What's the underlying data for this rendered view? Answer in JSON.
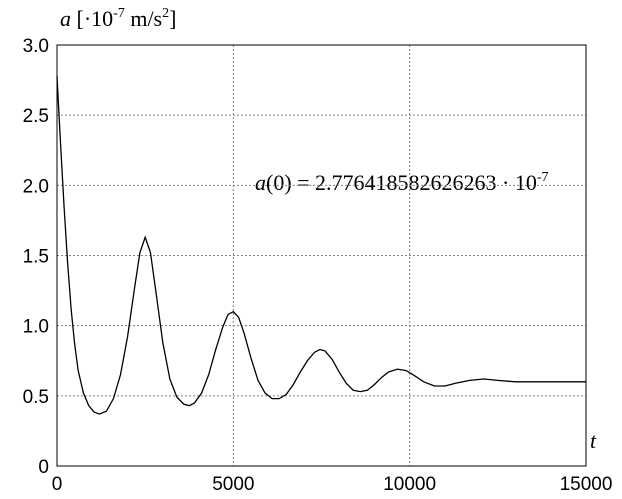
{
  "chart_data": {
    "type": "line",
    "y_label": [
      "a",
      " [·10",
      "-7",
      " m/s",
      "2",
      "]"
    ],
    "x_label": "t",
    "annotation": [
      "a",
      "(0) = 2.776418582626263 · 10",
      "-7"
    ],
    "x": [
      0,
      100,
      200,
      300,
      400,
      500,
      600,
      750,
      900,
      1050,
      1200,
      1400,
      1600,
      1800,
      2000,
      2200,
      2350,
      2500,
      2650,
      2800,
      3000,
      3200,
      3400,
      3600,
      3750,
      3900,
      4100,
      4300,
      4500,
      4700,
      4850,
      5000,
      5150,
      5300,
      5500,
      5700,
      5900,
      6100,
      6300,
      6500,
      6700,
      6900,
      7100,
      7300,
      7450,
      7600,
      7800,
      8000,
      8200,
      8400,
      8600,
      8800,
      9000,
      9200,
      9400,
      9650,
      9900,
      10100,
      10400,
      10700,
      11000,
      11300,
      11700,
      12100,
      12500,
      13000,
      13500,
      14000,
      15000
    ],
    "values": [
      2.776,
      2.3,
      1.85,
      1.45,
      1.12,
      0.87,
      0.68,
      0.52,
      0.43,
      0.385,
      0.37,
      0.39,
      0.48,
      0.65,
      0.92,
      1.27,
      1.52,
      1.63,
      1.52,
      1.25,
      0.88,
      0.62,
      0.49,
      0.44,
      0.43,
      0.45,
      0.52,
      0.65,
      0.83,
      0.99,
      1.08,
      1.1,
      1.06,
      0.95,
      0.77,
      0.61,
      0.52,
      0.48,
      0.48,
      0.51,
      0.58,
      0.67,
      0.75,
      0.81,
      0.83,
      0.82,
      0.76,
      0.67,
      0.59,
      0.54,
      0.53,
      0.54,
      0.58,
      0.63,
      0.67,
      0.69,
      0.68,
      0.65,
      0.6,
      0.57,
      0.57,
      0.59,
      0.61,
      0.62,
      0.61,
      0.6,
      0.6,
      0.6,
      0.6
    ],
    "color": "#000000",
    "xlim": [
      0,
      15000
    ],
    "xticks": [
      0,
      5000,
      10000,
      15000
    ],
    "ylim": [
      0,
      3
    ],
    "yticks": [
      0,
      0.5,
      {
        "value": 1,
        "label": "1.0"
      },
      1.5,
      {
        "value": 2,
        "label": "2.0"
      },
      2.5,
      {
        "value": 3,
        "label": "3.0"
      }
    ],
    "grid": true
  }
}
